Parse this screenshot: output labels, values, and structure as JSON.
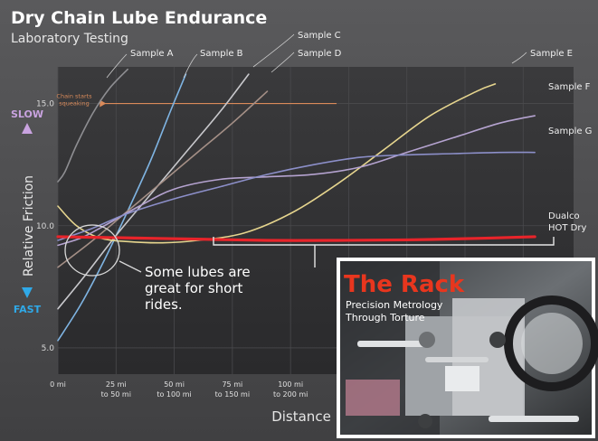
{
  "chart_data": {
    "type": "line",
    "title": "Dry Chain Lube Endurance",
    "subtitle": "Laboratory Testing",
    "xlabel": "Distance",
    "ylabel": "Relative Friction",
    "y_top_label": "SLOW",
    "y_bottom_label": "FAST",
    "x_ticks": [
      {
        "x": 0,
        "line1": "0 mi",
        "line2": ""
      },
      {
        "x": 25,
        "line1": "25 mi",
        "line2": "to 50 mi"
      },
      {
        "x": 50,
        "line1": "50 mi",
        "line2": "to 100 mi"
      },
      {
        "x": 75,
        "line1": "75 mi",
        "line2": "to 150 mi"
      },
      {
        "x": 100,
        "line1": "100 mi",
        "line2": "to 200 mi"
      }
    ],
    "y_ticks": [
      {
        "y": 15,
        "label": "15.0"
      },
      {
        "y": 10,
        "label": "10.0"
      },
      {
        "y": 5,
        "label": "5.0"
      }
    ],
    "xlim": [
      0,
      210
    ],
    "ylim": [
      4.0,
      16.5
    ],
    "threshold": {
      "y": 15,
      "label_line1": "Chain starts",
      "label_line2": "squeaking",
      "color": "#d98a5a"
    },
    "series": [
      {
        "name": "Sample A",
        "color": "#8e8e92",
        "label_anchor": [
          14,
          15.0
        ],
        "x": [
          0,
          3,
          8,
          15,
          22,
          30
        ],
        "y": [
          11.8,
          12.2,
          13.3,
          14.6,
          15.6,
          16.4
        ]
      },
      {
        "name": "Sample B",
        "color": "#7fb4e2",
        "label_anchor": [
          52,
          15.5
        ],
        "x": [
          0,
          10,
          20,
          30,
          40,
          48,
          55
        ],
        "y": [
          5.3,
          6.8,
          8.6,
          10.6,
          12.7,
          14.6,
          16.2
        ]
      },
      {
        "name": "Sample C",
        "color": "#c8c8cc",
        "label_anchor": [
          80,
          15.5
        ],
        "x": [
          0,
          12,
          25,
          40,
          55,
          70,
          82
        ],
        "y": [
          6.6,
          8.0,
          9.6,
          11.3,
          13.0,
          14.7,
          16.2
        ]
      },
      {
        "name": "Sample D",
        "color": "#a48f86",
        "label_anchor": [
          90,
          15.5
        ],
        "x": [
          0,
          15,
          30,
          45,
          60,
          75,
          90
        ],
        "y": [
          8.3,
          9.4,
          10.6,
          11.8,
          13.0,
          14.2,
          15.5
        ]
      },
      {
        "name": "Sample E",
        "color": "#e6d58e",
        "label_anchor": [
          188,
          15.5
        ],
        "x": [
          0,
          8,
          18,
          30,
          45,
          60,
          80,
          100,
          120,
          140,
          160,
          180,
          188
        ],
        "y": [
          10.8,
          10.0,
          9.5,
          9.35,
          9.3,
          9.4,
          9.7,
          10.5,
          11.7,
          13.1,
          14.5,
          15.5,
          15.8
        ]
      },
      {
        "name": "Sample F",
        "color": "#b5a3d0",
        "label_anchor": [
          205,
          14.6
        ],
        "x": [
          0,
          10,
          20,
          35,
          50,
          70,
          90,
          110,
          130,
          150,
          170,
          190,
          205
        ],
        "y": [
          9.2,
          9.5,
          10.0,
          10.8,
          11.5,
          11.9,
          12.0,
          12.1,
          12.4,
          13.0,
          13.6,
          14.2,
          14.5
        ]
      },
      {
        "name": "Sample G",
        "color": "#8c8fc9",
        "label_anchor": [
          205,
          13.0
        ],
        "x": [
          0,
          15,
          30,
          50,
          70,
          90,
          110,
          130,
          150,
          170,
          190,
          205
        ],
        "y": [
          9.4,
          9.9,
          10.5,
          11.1,
          11.6,
          12.1,
          12.5,
          12.8,
          12.9,
          12.95,
          13.0,
          13.0
        ]
      },
      {
        "name": "Dualco HOT Dry",
        "color": "#e8242a",
        "label_anchor": [
          205,
          9.5
        ],
        "x": [
          0,
          30,
          60,
          90,
          120,
          150,
          180,
          205
        ],
        "y": [
          9.55,
          9.5,
          9.45,
          9.4,
          9.4,
          9.42,
          9.48,
          9.55
        ]
      }
    ],
    "series_labels": [
      {
        "line1": "Sample A",
        "line2": ""
      },
      {
        "line1": "Sample B",
        "line2": ""
      },
      {
        "line1": "Sample C",
        "line2": ""
      },
      {
        "line1": "Sample D",
        "line2": ""
      },
      {
        "line1": "Sample E",
        "line2": ""
      },
      {
        "line1": "Sample F",
        "line2": ""
      },
      {
        "line1": "Sample G",
        "line2": ""
      },
      {
        "line1": "Dualco",
        "line2": "HOT Dry"
      }
    ],
    "annotation": {
      "line1": "Some lubes are",
      "line2": "great for short",
      "line3": "rides."
    },
    "grid": true
  },
  "inset": {
    "title": "The Rack",
    "subtitle_line1": "Precision Metrology",
    "subtitle_line2": "Through Torture",
    "title_color": "#e8361e"
  }
}
